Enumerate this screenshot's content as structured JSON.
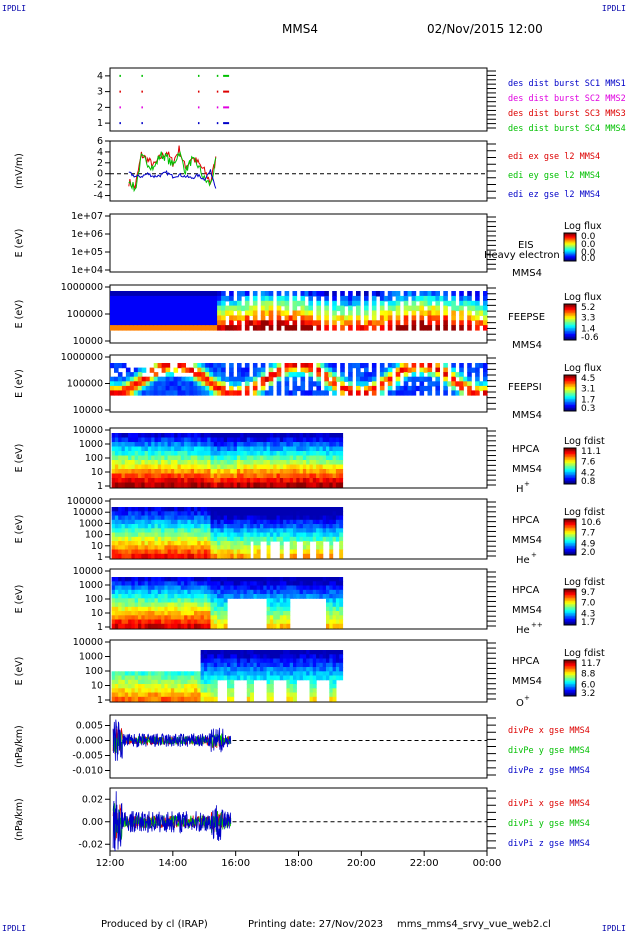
{
  "header": {
    "corner_label": "IPDLI",
    "spacecraft": "MMS4",
    "date_time": "02/Nov/2015 12:00"
  },
  "footer": {
    "produced_by": "Produced by cl (IRAP)",
    "printing_date": "Printing date: 27/Nov/2023",
    "filename": "mms_mms4_srvy_vue_web2.cl"
  },
  "time_axis": {
    "ticks": [
      "12:00",
      "14:00",
      "16:00",
      "18:00",
      "20:00",
      "22:00",
      "00:00"
    ],
    "start_hour": 12,
    "end_hour": 24
  },
  "colors": {
    "mms1": "#0000c8",
    "mms2": "#e000e0",
    "mms3": "#dd0000",
    "mms4": "#00c000",
    "x": "#dd0000",
    "y": "#00c000",
    "z": "#0000c8"
  },
  "chart_data": [
    {
      "type": "scatter",
      "id": "burst",
      "ylim": [
        0.5,
        4.5
      ],
      "yticks": [
        "4",
        "3",
        "2",
        "1"
      ],
      "legend": [
        "des dist burst SC1 MMS1",
        "des dist burst SC2 MMS2",
        "des dist burst SC3 MMS3",
        "des dist burst SC4 MMS4"
      ],
      "series": [
        {
          "name": "des dist burst SC1 MMS1",
          "level": 1,
          "times": [
            12.3,
            13.0,
            14.8,
            15.4,
            15.6
          ]
        },
        {
          "name": "des dist burst SC2 MMS2",
          "level": 2,
          "times": [
            12.3,
            13.0,
            14.8,
            15.4,
            15.6
          ]
        },
        {
          "name": "des dist burst SC3 MMS3",
          "level": 3,
          "times": [
            12.3,
            13.0,
            14.8,
            15.4,
            15.6
          ]
        },
        {
          "name": "des dist burst SC4 MMS4",
          "level": 4,
          "times": [
            12.3,
            13.0,
            14.8,
            15.4,
            15.6
          ]
        }
      ]
    },
    {
      "type": "line",
      "id": "edi",
      "ylabel": "(mV/m)",
      "ylim": [
        -5,
        6
      ],
      "yticks": [
        "6",
        "4",
        "2",
        "0",
        "-2",
        "-4"
      ],
      "yticks_values": [
        6,
        4,
        2,
        0,
        -2,
        -4
      ],
      "legend": [
        "edi ex gse l2 MMS4",
        "edi ey gse l2 MMS4",
        "edi ez gse l2 MMS4"
      ],
      "x": [
        12.6,
        12.8,
        13.0,
        13.2,
        13.4,
        13.6,
        13.8,
        14.0,
        14.2,
        14.4,
        14.6,
        14.8,
        15.0,
        15.2,
        15.4
      ],
      "series": [
        {
          "name": "edi ex gse l2 MMS4",
          "values": [
            -1.5,
            -2.5,
            3.5,
            2.5,
            1.5,
            3.0,
            4.0,
            2.0,
            4.5,
            1.0,
            3.0,
            2.0,
            0.5,
            -1.5,
            3.5
          ]
        },
        {
          "name": "edi ey gse l2 MMS4",
          "values": [
            -1.0,
            -3.0,
            3.0,
            2.0,
            1.0,
            3.5,
            3.0,
            1.5,
            4.0,
            0.5,
            2.5,
            1.5,
            -1.0,
            -2.0,
            3.0
          ]
        },
        {
          "name": "edi ez gse l2 MMS4",
          "values": [
            0.2,
            -0.5,
            -0.5,
            0.0,
            -0.5,
            -0.3,
            0.2,
            -0.5,
            -0.2,
            -0.5,
            -0.8,
            -0.3,
            -1.0,
            0.5,
            -3.0
          ]
        }
      ]
    },
    {
      "type": "heatmap",
      "id": "eis",
      "ylabel": "E (eV)",
      "yticks": [
        "1e+07",
        "1e+06",
        "1e+05",
        "1e+04"
      ],
      "label": "EIS",
      "overlap_text": "Heavy electron to",
      "sc": "MMS4",
      "colorbar_title": "Log flux",
      "colorbar_ticks": [
        "0.0",
        "0.0",
        "0.0",
        "0.0"
      ]
    },
    {
      "type": "heatmap",
      "id": "feepse",
      "ylabel": "E (eV)",
      "yticks": [
        "1000000",
        "100000",
        "10000"
      ],
      "label": "FEEPSE",
      "sc": "MMS4",
      "colorbar_title": "Log flux",
      "colorbar_ticks": [
        "5.2",
        "3.3",
        "1.4",
        "-0.6"
      ]
    },
    {
      "type": "heatmap",
      "id": "feepsi",
      "ylabel": "E (eV)",
      "yticks": [
        "1000000",
        "100000",
        "10000"
      ],
      "label": "FEEPSI",
      "sc": "MMS4",
      "colorbar_title": "Log flux",
      "colorbar_ticks": [
        "4.5",
        "3.1",
        "1.7",
        "0.3"
      ]
    },
    {
      "type": "heatmap",
      "id": "hpca_h",
      "ylabel": "E (eV)",
      "yticks": [
        "10000",
        "1000",
        "100",
        "10",
        "1"
      ],
      "label": "HPCA",
      "sc": "MMS4",
      "species": "H",
      "species_sup": "+",
      "colorbar_title": "Log fdist",
      "colorbar_ticks": [
        "11.1",
        "7.6",
        "4.2",
        "0.8"
      ]
    },
    {
      "type": "heatmap",
      "id": "hpca_he",
      "ylabel": "E (eV)",
      "yticks": [
        "100000",
        "10000",
        "1000",
        "100",
        "10",
        "1"
      ],
      "label": "HPCA",
      "sc": "MMS4",
      "species": "He",
      "species_sup": "+",
      "colorbar_title": "Log fdist",
      "colorbar_ticks": [
        "10.6",
        "7.7",
        "4.9",
        "2.0"
      ]
    },
    {
      "type": "heatmap",
      "id": "hpca_hepp",
      "ylabel": "E (eV)",
      "yticks": [
        "10000",
        "1000",
        "100",
        "10",
        "1"
      ],
      "label": "HPCA",
      "sc": "MMS4",
      "species": "He",
      "species_sup": "++",
      "colorbar_title": "Log fdist",
      "colorbar_ticks": [
        "9.7",
        "7.0",
        "4.3",
        "1.7"
      ]
    },
    {
      "type": "heatmap",
      "id": "hpca_o",
      "ylabel": "E (eV)",
      "yticks": [
        "10000",
        "1000",
        "100",
        "10",
        "1"
      ],
      "label": "HPCA",
      "sc": "MMS4",
      "species": "O",
      "species_sup": "+",
      "colorbar_title": "Log fdist",
      "colorbar_ticks": [
        "11.7",
        "8.8",
        "6.0",
        "3.2"
      ]
    },
    {
      "type": "line",
      "id": "divpe",
      "ylabel": "(nPa/km)",
      "ylim": [
        -0.0125,
        0.0085
      ],
      "yticks": [
        "0.005",
        "0.000",
        "-0.005",
        "-0.010"
      ],
      "yticks_values": [
        0.005,
        0.0,
        -0.005,
        -0.01
      ],
      "legend": [
        "divPe x gse MMS4",
        "divPe y gse MMS4",
        "divPe z gse MMS4"
      ]
    },
    {
      "type": "line",
      "id": "divpi",
      "ylabel": "(nPa/km)",
      "ylim": [
        -0.026,
        0.03
      ],
      "yticks": [
        "0.02",
        "0.00",
        "-0.02"
      ],
      "yticks_values": [
        0.02,
        0.0,
        -0.02
      ],
      "legend": [
        "divPi x gse MMS4",
        "divPi y gse MMS4",
        "divPi z gse MMS4"
      ]
    }
  ]
}
